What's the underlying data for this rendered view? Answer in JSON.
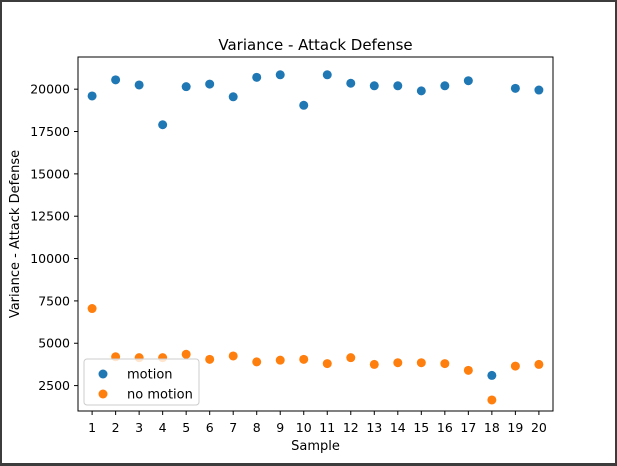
{
  "chart_data": {
    "type": "scatter",
    "title": "Variance - Attack Defense",
    "xlabel": "Sample",
    "ylabel": "Variance - Attack Defense",
    "x": [
      1,
      2,
      3,
      4,
      5,
      6,
      7,
      8,
      9,
      10,
      11,
      12,
      13,
      14,
      15,
      16,
      17,
      18,
      19,
      20
    ],
    "x_ticks": [
      "1",
      "2",
      "3",
      "4",
      "5",
      "6",
      "7",
      "8",
      "9",
      "10",
      "11",
      "12",
      "13",
      "14",
      "15",
      "16",
      "17",
      "18",
      "19",
      "20"
    ],
    "y_ticks": [
      2500,
      5000,
      7500,
      10000,
      12500,
      15000,
      17500,
      20000
    ],
    "y_tick_labels": [
      "2500",
      "5000",
      "7500",
      "10000",
      "12500",
      "15000",
      "17500",
      "20000"
    ],
    "xlim": [
      0.4,
      20.6
    ],
    "ylim": [
      1000,
      21900
    ],
    "grid": false,
    "legend": "lower-left",
    "series": [
      {
        "name": "motion",
        "color": "#1f77b4",
        "values": [
          19600,
          20550,
          20250,
          17900,
          20150,
          20300,
          19550,
          20700,
          20850,
          19050,
          20850,
          20350,
          20200,
          20200,
          19900,
          20200,
          20500,
          3100,
          20050,
          19950
        ]
      },
      {
        "name": "no motion",
        "color": "#ff7f0e",
        "values": [
          7050,
          4200,
          4150,
          4150,
          4350,
          4050,
          4250,
          3900,
          4000,
          4050,
          3800,
          4150,
          3750,
          3850,
          3850,
          3800,
          3400,
          1650,
          3650,
          3750
        ]
      }
    ]
  }
}
